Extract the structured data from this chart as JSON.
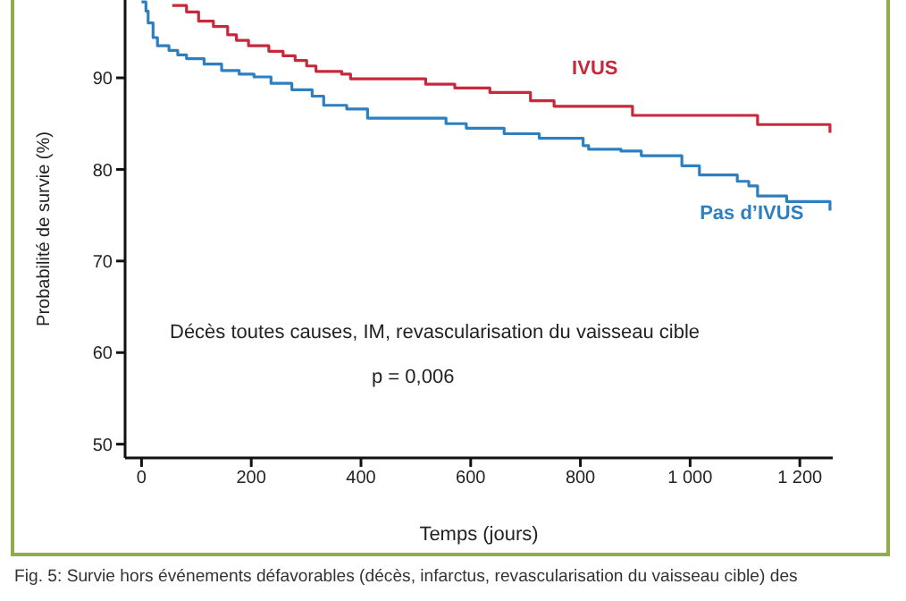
{
  "chart_data": {
    "type": "step",
    "xlabel": "Temps (jours)",
    "ylabel": "Probabilité de survie (%)",
    "xlim": [
      -30,
      1260
    ],
    "ylim": [
      48.5,
      98.5
    ],
    "xticks": [
      0,
      200,
      400,
      600,
      800,
      {
        "value": 1000,
        "label": "1 000"
      },
      {
        "value": 1200,
        "label": "1 200"
      }
    ],
    "yticks": [
      50,
      60,
      70,
      80,
      90
    ],
    "legend": false,
    "marker": "none",
    "line_style": "solid",
    "annotations": [
      "Décès toutes causes, IM, revascularisation du vaisseau cible",
      "p = 0,006",
      "Fig. 5: Survie hors événements défavorables (décès, infarctus, revascularisation du vaisseau cible) des"
    ],
    "series": [
      {
        "name": "IVUS",
        "color": "#c8283c",
        "x": [
          56,
          82,
          104,
          131,
          157,
          173,
          195,
          232,
          258,
          280,
          301,
          318,
          365,
          381,
          518,
          571,
          635,
          709,
          752,
          895,
          1123,
          1255
        ],
        "values": [
          97.9,
          97.2,
          96.2,
          95.6,
          94.7,
          94.1,
          93.5,
          92.9,
          92.4,
          91.9,
          91.3,
          90.7,
          90.4,
          89.9,
          89.3,
          88.9,
          88.4,
          87.5,
          86.9,
          85.9,
          84.9,
          84
        ]
      },
      {
        "name": "Pas d’IVUS",
        "color": "#2e7fc0",
        "x": [
          0,
          8,
          12,
          21,
          29,
          50,
          66,
          82,
          114,
          146,
          178,
          205,
          236,
          274,
          311,
          332,
          374,
          412,
          555,
          592,
          661,
          725,
          805,
          815,
          874,
          911,
          985,
          1017,
          1086,
          1107,
          1123,
          1176,
          1255
        ],
        "values": [
          98.3,
          97.3,
          96,
          94.4,
          93.5,
          93,
          92.5,
          92.1,
          91.5,
          90.8,
          90.4,
          90.1,
          89.4,
          88.7,
          88,
          87,
          86.6,
          85.6,
          85,
          84.5,
          83.9,
          83.4,
          82.6,
          82.2,
          82,
          81.5,
          80.4,
          79.4,
          78.7,
          78.2,
          77.1,
          76.5,
          75.5
        ]
      }
    ]
  }
}
